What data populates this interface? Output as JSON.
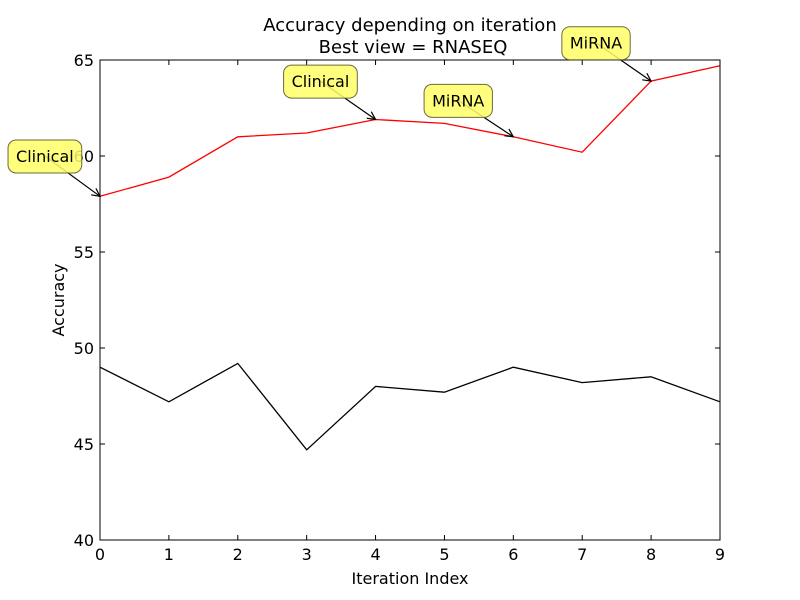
{
  "chart_data": {
    "type": "line",
    "title": "Accuracy depending on iteration",
    "subtitle": "Best view = RNASEQ",
    "xlabel": "Iteration Index",
    "ylabel": "Accuracy",
    "xlim": [
      0,
      9
    ],
    "ylim": [
      40,
      65
    ],
    "x": [
      0,
      1,
      2,
      3,
      4,
      5,
      6,
      7,
      8,
      9
    ],
    "xticks": [
      0,
      1,
      2,
      3,
      4,
      5,
      6,
      7,
      8,
      9
    ],
    "yticks": [
      40,
      45,
      50,
      55,
      60,
      65
    ],
    "grid": false,
    "colors": {
      "red_series": "#ff0000",
      "black_series": "#000000"
    },
    "series": [
      {
        "values": [
          57.9,
          58.9,
          61.0,
          61.2,
          61.9,
          61.7,
          61.0,
          60.2,
          63.9,
          64.7
        ]
      },
      {
        "values": [
          49.0,
          47.2,
          49.2,
          44.7,
          48.0,
          47.7,
          49.0,
          48.2,
          48.5,
          47.2
        ]
      }
    ],
    "annotations": [
      {
        "text": "Clinical",
        "x": 0,
        "y": 57.9,
        "text_x": -0.8,
        "text_y": 60.0
      },
      {
        "text": "Clinical",
        "x": 4,
        "y": 61.9,
        "text_x": 3.2,
        "text_y": 63.9
      },
      {
        "text": "MiRNA",
        "x": 6,
        "y": 61.0,
        "text_x": 5.2,
        "text_y": 62.9
      },
      {
        "text": "MiRNA",
        "x": 8,
        "y": 63.9,
        "text_x": 7.2,
        "text_y": 65.9
      }
    ]
  }
}
